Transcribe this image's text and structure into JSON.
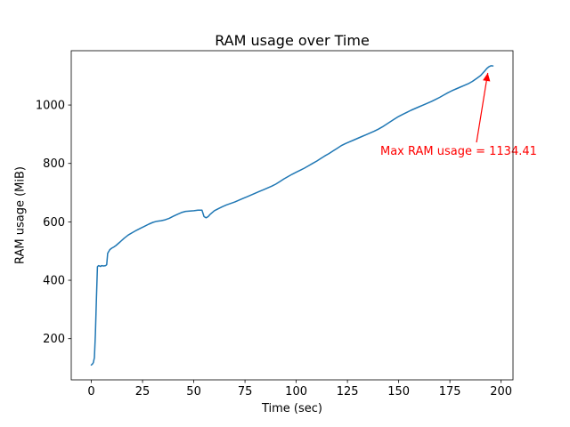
{
  "chart_data": {
    "type": "line",
    "title": "RAM usage over Time",
    "xlabel": "Time (sec)",
    "ylabel": "RAM usage (MiB)",
    "xlim": [
      -9.8,
      205.8
    ],
    "ylim": [
      59,
      1186
    ],
    "xticks": [
      0,
      25,
      50,
      75,
      100,
      125,
      150,
      175,
      200
    ],
    "yticks": [
      200,
      400,
      600,
      800,
      1000
    ],
    "grid": false,
    "legend": "none",
    "line_color": "#1f77b4",
    "series": [
      {
        "name": "RAM usage",
        "points": [
          [
            0,
            110
          ],
          [
            0.5,
            113
          ],
          [
            1,
            118
          ],
          [
            1.5,
            135
          ],
          [
            2,
            215
          ],
          [
            2.5,
            340
          ],
          [
            3,
            446
          ],
          [
            3.5,
            450
          ],
          [
            4,
            449
          ],
          [
            4.5,
            447
          ],
          [
            5,
            450
          ],
          [
            6,
            449
          ],
          [
            7,
            450
          ],
          [
            7.5,
            453
          ],
          [
            8,
            492
          ],
          [
            9,
            505
          ],
          [
            10,
            510
          ],
          [
            11,
            514
          ],
          [
            12,
            519
          ],
          [
            14,
            531
          ],
          [
            16,
            544
          ],
          [
            18,
            555
          ],
          [
            20,
            563
          ],
          [
            22,
            571
          ],
          [
            24,
            578
          ],
          [
            26,
            585
          ],
          [
            28,
            592
          ],
          [
            30,
            598
          ],
          [
            32,
            602
          ],
          [
            34,
            604
          ],
          [
            36,
            607
          ],
          [
            38,
            612
          ],
          [
            40,
            619
          ],
          [
            42,
            626
          ],
          [
            44,
            632
          ],
          [
            46,
            636
          ],
          [
            48,
            637
          ],
          [
            50,
            638
          ],
          [
            52,
            640
          ],
          [
            54,
            640
          ],
          [
            55,
            618
          ],
          [
            56,
            614
          ],
          [
            57,
            618
          ],
          [
            58,
            626
          ],
          [
            60,
            638
          ],
          [
            62,
            645
          ],
          [
            64,
            652
          ],
          [
            66,
            658
          ],
          [
            68,
            663
          ],
          [
            70,
            668
          ],
          [
            72,
            674
          ],
          [
            74,
            680
          ],
          [
            76,
            686
          ],
          [
            78,
            692
          ],
          [
            80,
            698
          ],
          [
            82,
            704
          ],
          [
            84,
            710
          ],
          [
            86,
            716
          ],
          [
            88,
            722
          ],
          [
            90,
            729
          ],
          [
            92,
            738
          ],
          [
            94,
            747
          ],
          [
            96,
            755
          ],
          [
            98,
            763
          ],
          [
            100,
            770
          ],
          [
            102,
            777
          ],
          [
            104,
            784
          ],
          [
            106,
            792
          ],
          [
            108,
            800
          ],
          [
            110,
            808
          ],
          [
            112,
            817
          ],
          [
            114,
            826
          ],
          [
            116,
            834
          ],
          [
            118,
            843
          ],
          [
            120,
            852
          ],
          [
            122,
            861
          ],
          [
            124,
            868
          ],
          [
            126,
            874
          ],
          [
            128,
            880
          ],
          [
            130,
            886
          ],
          [
            132,
            892
          ],
          [
            134,
            898
          ],
          [
            136,
            904
          ],
          [
            138,
            910
          ],
          [
            140,
            917
          ],
          [
            142,
            925
          ],
          [
            144,
            934
          ],
          [
            146,
            943
          ],
          [
            148,
            952
          ],
          [
            150,
            961
          ],
          [
            152,
            968
          ],
          [
            154,
            975
          ],
          [
            156,
            982
          ],
          [
            158,
            988
          ],
          [
            160,
            994
          ],
          [
            162,
            1000
          ],
          [
            164,
            1006
          ],
          [
            166,
            1012
          ],
          [
            168,
            1019
          ],
          [
            170,
            1026
          ],
          [
            172,
            1034
          ],
          [
            174,
            1042
          ],
          [
            176,
            1049
          ],
          [
            178,
            1055
          ],
          [
            180,
            1061
          ],
          [
            182,
            1067
          ],
          [
            184,
            1073
          ],
          [
            186,
            1081
          ],
          [
            188,
            1091
          ],
          [
            190,
            1101
          ],
          [
            191,
            1109
          ],
          [
            192,
            1117
          ],
          [
            193,
            1125
          ],
          [
            194,
            1131
          ],
          [
            195,
            1134.41
          ],
          [
            196,
            1134
          ]
        ]
      }
    ],
    "annotation": {
      "text": "Max RAM usage = 1134.41",
      "color": "#ff0000",
      "text_xy": [
        141,
        838
      ],
      "arrow_tail_xy": [
        188,
        872
      ],
      "arrow_tip_xy": [
        193.5,
        1110
      ],
      "max_value": 1134.41
    }
  }
}
